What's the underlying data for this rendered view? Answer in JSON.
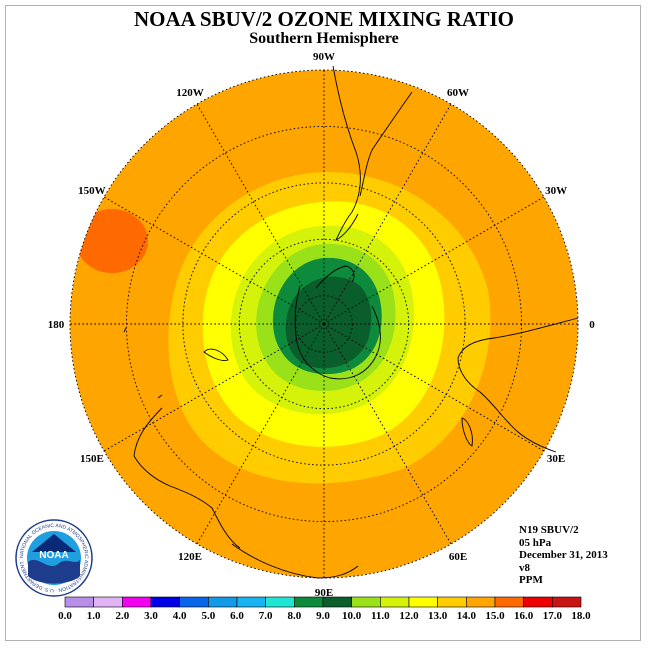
{
  "title": "NOAA SBUV/2 OZONE MIXING RATIO",
  "subtitle": "Southern Hemisphere",
  "info": {
    "instrument": "N19 SBUV/2",
    "level": "05 hPa",
    "date": "December 31, 2013",
    "version": "v8",
    "units": "PPM"
  },
  "logo": {
    "text": "NOAA",
    "ring_text": "NATIONAL OCEANIC AND ATMOSPHERIC ADMINISTRATION · U.S. DEPARTMENT OF COMMERCE"
  },
  "longitude_labels": [
    {
      "label": "90W",
      "lon": -90
    },
    {
      "label": "60W",
      "lon": -60
    },
    {
      "label": "30W",
      "lon": -30
    },
    {
      "label": "0",
      "lon": 0
    },
    {
      "label": "30E",
      "lon": 30
    },
    {
      "label": "60E",
      "lon": 60
    },
    {
      "label": "90E",
      "lon": 90
    },
    {
      "label": "120E",
      "lon": 120
    },
    {
      "label": "150E",
      "lon": 150
    },
    {
      "label": "180",
      "lon": 180
    },
    {
      "label": "150W",
      "lon": -150
    },
    {
      "label": "120W",
      "lon": -120
    }
  ],
  "latitude_circles": [
    -80,
    -60,
    -40,
    -20,
    0
  ],
  "colorbar": {
    "ticks": [
      "0.0",
      "1.0",
      "2.0",
      "3.0",
      "4.0",
      "5.0",
      "6.0",
      "7.0",
      "8.0",
      "9.0",
      "10.0",
      "11.0",
      "12.0",
      "13.0",
      "14.0",
      "15.0",
      "16.0",
      "17.0",
      "18.0"
    ],
    "colors": [
      "#b78ee8",
      "#e0b4f4",
      "#f200f0",
      "#0000e6",
      "#0a66e8",
      "#129ae8",
      "#19b4f0",
      "#1ee6d2",
      "#0e8a3c",
      "#0a5e2c",
      "#9ae11a",
      "#d4f20a",
      "#ffff00",
      "#ffcc00",
      "#ffa500",
      "#ff6a00",
      "#ee0000",
      "#c81414",
      "#8c5a3c"
    ]
  },
  "map_colors": {
    "ocean_base": "#ffa500",
    "band_14": "#ffcc00",
    "band_13": "#ffff00",
    "band_12": "#d4f20a",
    "band_11": "#9ae11a",
    "band_10": "#0e8a3c",
    "band_9": "#0a5e2c",
    "band_16": "#ff6a00"
  }
}
